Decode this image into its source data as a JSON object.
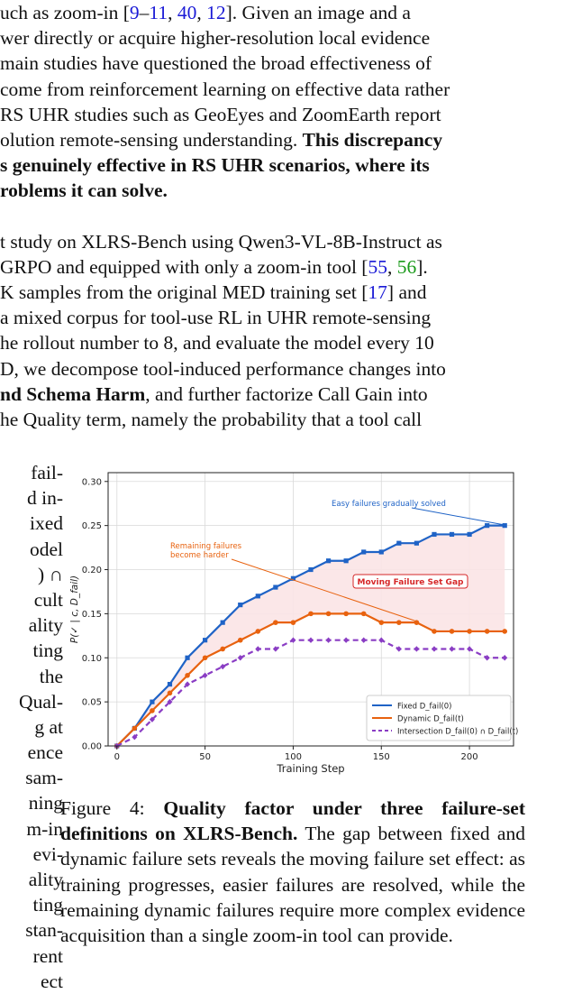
{
  "top_lines": [
    [
      "uch as zoom-in [",
      "9",
      "–",
      "11",
      ", ",
      "40",
      ", ",
      "12",
      "].  Given an image and a"
    ],
    [
      "wer directly or acquire higher-resolution local evidence"
    ],
    [
      "main studies have questioned the broad effectiveness of"
    ],
    [
      "come from reinforcement learning on effective data rather"
    ],
    [
      " RS UHR studies such as GeoEyes and ZoomEarth report"
    ],
    [
      "olution remote-sensing understanding. ",
      "This discrepancy"
    ],
    [
      "s genuinely effective in RS UHR scenarios, where its"
    ],
    [
      "roblems it can solve."
    ],
    [
      ""
    ],
    [
      "t study on XLRS-Bench using Qwen3-VL-8B-Instruct as"
    ],
    [
      " GRPO and equipped with only a zoom-in tool [",
      "55",
      ", ",
      "56",
      "]."
    ],
    [
      "K samples from the original MED training set [",
      "17",
      "] and"
    ],
    [
      "a mixed corpus for tool-use RL in UHR remote-sensing"
    ],
    [
      "he rollout number to 8, and evaluate the model every 10"
    ],
    [
      "D, we decompose tool-induced performance changes into"
    ],
    [
      "nd Schema Harm",
      ", and further factorize Call Gain into"
    ],
    [
      "he Quality term, namely the probability that a tool call"
    ]
  ],
  "left_fragments": [
    "fail-",
    "d in-",
    "ixed",
    "odel",
    ") ∩",
    "cult",
    "ality",
    "ting",
    "the",
    "Qual-",
    "g at",
    "ence",
    "sam-",
    "ning",
    "m-in",
    "evi-",
    "ality",
    "ting",
    "stan-",
    "rent",
    "ect"
  ],
  "caption": {
    "label": "Figure 4: ",
    "bold": "Quality factor under three failure-set definitions on XLRS-Bench.",
    "text": " The gap between fixed and dynamic failure sets reveals the moving failure set effect: as training progresses, easier failures are resolved, while the remaining dynamic failures require more complex evidence acquisition than a single zoom-in tool can provide."
  },
  "chart_data": {
    "type": "line",
    "xlabel": "Training Step",
    "ylabel": "P(✓ | c, D_fail)",
    "xlim": [
      -5,
      225
    ],
    "ylim": [
      0,
      0.31
    ],
    "xticks": [
      0,
      50,
      100,
      150,
      200
    ],
    "yticks": [
      0.0,
      0.05,
      0.1,
      0.15,
      0.2,
      0.25,
      0.3
    ],
    "ytick_labels": [
      "0.00",
      "0.05",
      "0.10",
      "0.15",
      "0.20",
      "0.25",
      "0.30"
    ],
    "x": [
      0,
      10,
      20,
      30,
      40,
      50,
      60,
      70,
      80,
      90,
      100,
      110,
      120,
      130,
      140,
      150,
      160,
      170,
      180,
      190,
      200,
      210,
      220
    ],
    "series": [
      {
        "name": "Fixed D_fail(0)",
        "color": "#1f63c6",
        "dash": false,
        "marker": "square",
        "values": [
          0.0,
          0.02,
          0.05,
          0.07,
          0.1,
          0.12,
          0.14,
          0.16,
          0.17,
          0.18,
          0.19,
          0.2,
          0.21,
          0.21,
          0.22,
          0.22,
          0.23,
          0.23,
          0.24,
          0.24,
          0.24,
          0.25,
          0.25
        ]
      },
      {
        "name": "Dynamic D_fail(t)",
        "color": "#e8620f",
        "dash": false,
        "marker": "circle",
        "values": [
          0.0,
          0.02,
          0.04,
          0.06,
          0.08,
          0.1,
          0.11,
          0.12,
          0.13,
          0.14,
          0.14,
          0.15,
          0.15,
          0.15,
          0.15,
          0.14,
          0.14,
          0.14,
          0.13,
          0.13,
          0.13,
          0.13,
          0.13
        ]
      },
      {
        "name": "Intersection D_fail(0) ∩ D_fail(t)",
        "color": "#8a3dc4",
        "dash": true,
        "marker": "diamond",
        "values": [
          0.0,
          0.01,
          0.03,
          0.05,
          0.07,
          0.08,
          0.09,
          0.1,
          0.11,
          0.11,
          0.12,
          0.12,
          0.12,
          0.12,
          0.12,
          0.12,
          0.11,
          0.11,
          0.11,
          0.11,
          0.11,
          0.1,
          0.1
        ]
      }
    ],
    "legend_position": "lower-right",
    "grid": true,
    "gap_fill_color": "#fbe4e6",
    "annotations": {
      "easy": {
        "text": "Easy failures gradually solved",
        "color": "#1f63c6",
        "target": [
          220,
          0.25
        ]
      },
      "remaining": {
        "text": [
          "Remaining failures",
          "become harder"
        ],
        "color": "#e8620f",
        "target": [
          170,
          0.14
        ]
      },
      "gap": {
        "text": "Moving Failure Set Gap",
        "color": "#d62728"
      }
    }
  }
}
